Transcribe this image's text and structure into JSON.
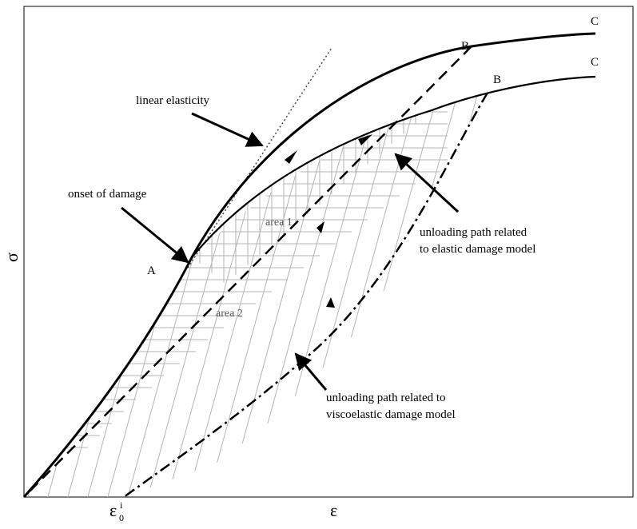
{
  "annotations": {
    "linear_elasticity": "linear elasticity",
    "onset_of_damage": "onset of damage",
    "unloading_elastic_line1": "unloading path related",
    "unloading_elastic_line2": "to elastic damage model",
    "unloading_visco_line1": "unloading path related to",
    "unloading_visco_line2": "viscoelastic damage model"
  },
  "areas": {
    "area1": "area 1",
    "area2": "area 2"
  },
  "points": {
    "A": "A",
    "B_upper": "B",
    "B_lower": "B",
    "C_upper": "C",
    "C_lower": "C"
  },
  "axes": {
    "y_symbol": "σ",
    "x_symbol": "ε",
    "x_tick_base": "ε",
    "x_tick_sub": "0",
    "x_tick_sup": "i"
  },
  "colors": {
    "curve": "#000000",
    "hatch": "#b5b5b5",
    "frame": "#000000"
  }
}
